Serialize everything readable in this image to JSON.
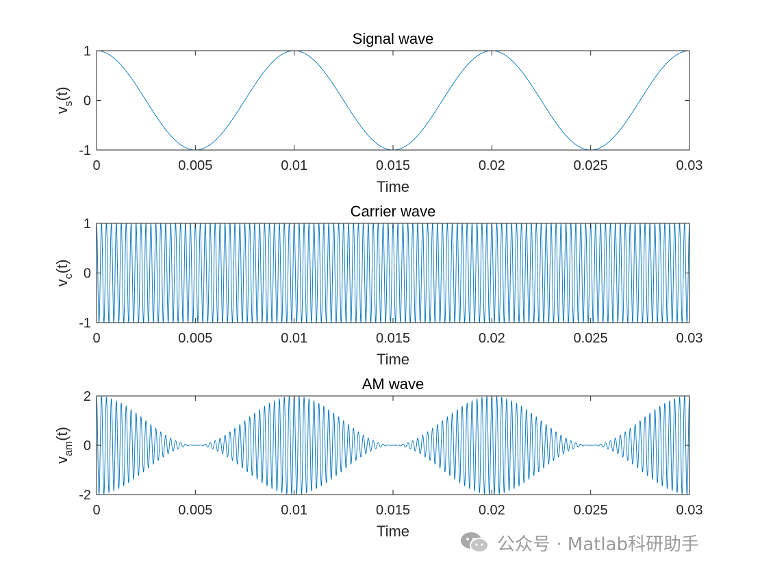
{
  "chart_data": [
    {
      "type": "line",
      "title": "Signal wave",
      "xlabel": "Time",
      "ylabel_base": "v",
      "ylabel_sub": "s",
      "ylabel_tail": "(t)",
      "xlim": [
        0,
        0.03
      ],
      "ylim": [
        -1,
        1
      ],
      "xticks": [
        "0",
        "0.005",
        "0.01",
        "0.015",
        "0.02",
        "0.025",
        "0.03"
      ],
      "yticks": [
        "-1",
        "0",
        "1"
      ],
      "series": [
        {
          "function": "cos(2*pi*100*t)",
          "signal_frequency_hz": 100,
          "amplitude": 1
        }
      ],
      "color": "#0072BD",
      "grid": false
    },
    {
      "type": "line",
      "title": "Carrier wave",
      "xlabel": "Time",
      "ylabel_base": "v",
      "ylabel_sub": "c",
      "ylabel_tail": "(t)",
      "xlim": [
        0,
        0.03
      ],
      "ylim": [
        -1,
        1
      ],
      "xticks": [
        "0",
        "0.005",
        "0.01",
        "0.015",
        "0.02",
        "0.025",
        "0.03"
      ],
      "yticks": [
        "-1",
        "0",
        "1"
      ],
      "series": [
        {
          "function": "cos(2*pi*4000*t)",
          "carrier_frequency_hz": 4000,
          "amplitude": 1
        }
      ],
      "color": "#0072BD",
      "grid": false
    },
    {
      "type": "line",
      "title": "AM wave",
      "xlabel": "Time",
      "ylabel_base": "v",
      "ylabel_sub": "am",
      "ylabel_tail": "(t)",
      "xlim": [
        0,
        0.03
      ],
      "ylim": [
        -2,
        2
      ],
      "xticks": [
        "0",
        "0.005",
        "0.01",
        "0.015",
        "0.02",
        "0.025",
        "0.03"
      ],
      "yticks": [
        "-2",
        "0",
        "2"
      ],
      "series": [
        {
          "function": "(1+cos(2*pi*100*t))*cos(2*pi*4000*t)",
          "modulation_index": 1,
          "carrier_frequency_hz": 4000,
          "signal_frequency_hz": 100
        }
      ],
      "color": "#0072BD",
      "grid": false
    }
  ],
  "watermark": {
    "text": "公众号 · Matlab科研助手",
    "icon": "wechat-icon"
  }
}
